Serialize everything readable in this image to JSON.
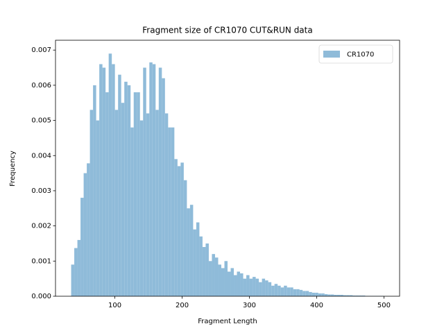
{
  "chart_data": {
    "type": "histogram",
    "title": "Fragment size of CR1070 CUT&RUN data",
    "xlabel": "Fragment Length",
    "ylabel": "Frequency",
    "bins": [
      35,
      39.65,
      44.3,
      48.95,
      53.6,
      58.25,
      62.9,
      67.55,
      72.2,
      76.85,
      81.5,
      86.15,
      90.8,
      95.45,
      100.1,
      104.75,
      109.4,
      114.05,
      118.7,
      123.35,
      128,
      132.65,
      137.3,
      141.95,
      146.6,
      151.25,
      155.9,
      160.55,
      165.2,
      169.85,
      174.5,
      179.15,
      183.8,
      188.45,
      193.1,
      197.75,
      202.4,
      207.05,
      211.7,
      216.35,
      221,
      225.65,
      230.3,
      234.95,
      239.6,
      244.25,
      248.9,
      253.55,
      258.2,
      262.85,
      267.5,
      272.15,
      276.8,
      281.45,
      286.1,
      290.75,
      295.4,
      300.05,
      304.7,
      309.35,
      314,
      318.65,
      323.3,
      327.95,
      332.6,
      337.25,
      341.9,
      346.55,
      351.2,
      355.85,
      360.5,
      365.15,
      369.8,
      374.45,
      379.1,
      383.75,
      388.4,
      393.05,
      397.7,
      402.35,
      407,
      411.65,
      416.3,
      420.95,
      425.6,
      430.25,
      434.9,
      439.55,
      444.2,
      448.85,
      453.5,
      458.15,
      462.8,
      467.45,
      472.1,
      476.75,
      481.4,
      486.05,
      490.7,
      495.35,
      500
    ],
    "series": [
      {
        "name": "CR1070",
        "color": "#8fbbd9",
        "values": [
          0.0009,
          0.00137,
          0.0016,
          0.0028,
          0.0035,
          0.00378,
          0.0053,
          0.006,
          0.005,
          0.0066,
          0.0065,
          0.0058,
          0.0069,
          0.0066,
          0.0053,
          0.0063,
          0.0055,
          0.0061,
          0.006,
          0.0048,
          0.0058,
          0.0058,
          0.005,
          0.0065,
          0.0052,
          0.00665,
          0.0066,
          0.0053,
          0.0065,
          0.0062,
          0.0052,
          0.0048,
          0.0048,
          0.0039,
          0.0037,
          0.0038,
          0.0033,
          0.0025,
          0.0026,
          0.0019,
          0.0021,
          0.0017,
          0.0014,
          0.0015,
          0.001,
          0.0012,
          0.0011,
          0.0009,
          0.0008,
          0.001,
          0.0007,
          0.0008,
          0.0006,
          0.0007,
          0.00065,
          0.0005,
          0.0006,
          0.0005,
          0.00055,
          0.0005,
          0.0004,
          0.0005,
          0.00045,
          0.0004,
          0.0003,
          0.00035,
          0.0003,
          0.00025,
          0.0003,
          0.00025,
          0.00025,
          0.0002,
          0.0002,
          0.00018,
          0.00015,
          0.00015,
          0.00012,
          0.0001,
          0.0001,
          8e-05,
          8e-05,
          6e-05,
          5e-05,
          5e-05,
          4e-05,
          4e-05,
          4e-05,
          3e-05,
          3e-05,
          3e-05,
          2e-05,
          2e-05,
          2e-05,
          2e-05,
          1e-05,
          1e-05,
          1e-05,
          1e-05,
          1e-05,
          1e-05
        ]
      }
    ],
    "xlim": [
      11.75,
      523.25
    ],
    "xticks": [
      100,
      200,
      300,
      400,
      500
    ],
    "ylim": [
      0,
      0.00728
    ],
    "yticks": [
      {
        "value": 0,
        "label": "0.000"
      },
      {
        "value": 0.001,
        "label": "0.001"
      },
      {
        "value": 0.002,
        "label": "0.002"
      },
      {
        "value": 0.003,
        "label": "0.003"
      },
      {
        "value": 0.004,
        "label": "0.004"
      },
      {
        "value": 0.005,
        "label": "0.005"
      },
      {
        "value": 0.006,
        "label": "0.006"
      },
      {
        "value": 0.007,
        "label": "0.007"
      }
    ],
    "legend": "upper right"
  }
}
